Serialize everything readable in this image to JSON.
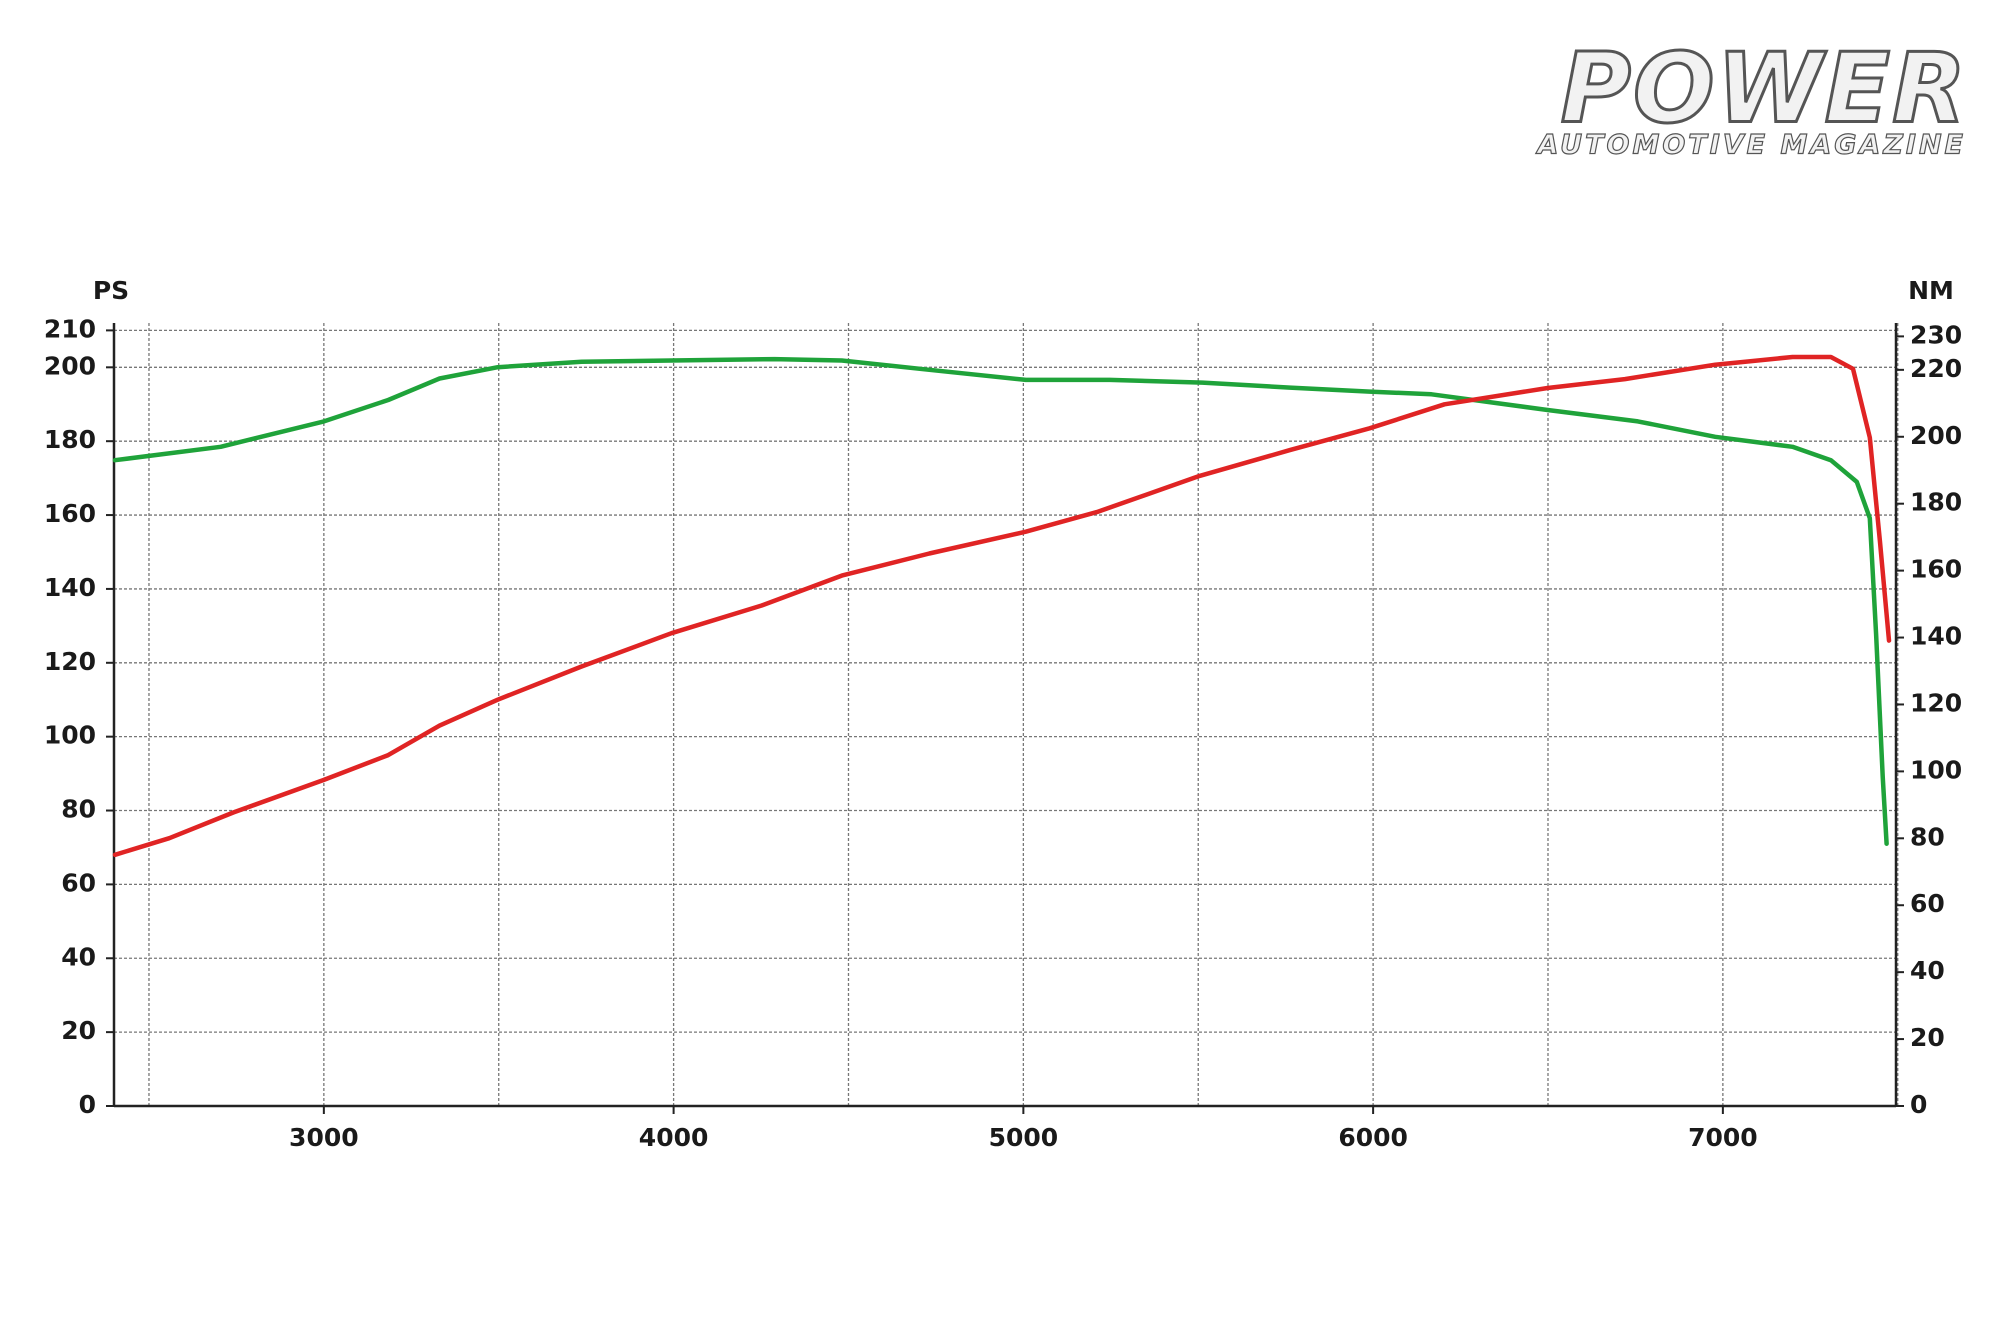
{
  "logo": {
    "title": "POWER",
    "subtitle": "AUTOMOTIVE MAGAZINE"
  },
  "chart_data": {
    "type": "line",
    "ylabel": "PS",
    "y2label": "NM",
    "xlim": [
      2400,
      7495
    ],
    "xticks": [
      3000,
      4000,
      5000,
      6000,
      7000
    ],
    "xgrid": [
      2500,
      3000,
      3500,
      4000,
      4500,
      5000,
      5500,
      6000,
      6500,
      7000,
      7500
    ],
    "ylim": [
      0,
      212
    ],
    "yticks": [
      0,
      20,
      40,
      60,
      80,
      100,
      120,
      140,
      160,
      180,
      200,
      210
    ],
    "y2lim": [
      0,
      234
    ],
    "y2ticks": [
      0,
      20,
      40,
      60,
      80,
      100,
      120,
      140,
      160,
      180,
      200,
      220,
      230
    ],
    "grid": true,
    "series": [
      {
        "color": "#e02424",
        "axis": "y",
        "x": [
          2403,
          2558,
          2742,
          3000,
          3184,
          3331,
          3497,
          3737,
          3994,
          4252,
          4481,
          4731,
          5007,
          5210,
          5504,
          5762,
          5990,
          6204,
          6499,
          6720,
          6978,
          7199,
          7309,
          7372,
          7420,
          7449,
          7475
        ],
        "values": [
          68,
          72.5,
          79.5,
          88.3,
          95,
          103,
          110,
          119,
          128,
          135.5,
          143.6,
          149.6,
          155.5,
          160.8,
          170.6,
          177.6,
          183.5,
          190,
          194.4,
          196.8,
          200.7,
          202.8,
          202.8,
          199.6,
          181,
          153,
          126
        ]
      },
      {
        "color": "#1fa33a",
        "axis": "y2",
        "x": [
          2403,
          2705,
          3000,
          3184,
          3331,
          3497,
          3737,
          3994,
          4289,
          4481,
          4731,
          5007,
          5247,
          5512,
          5762,
          5990,
          6167,
          6499,
          6757,
          6978,
          7199,
          7309,
          7383,
          7420,
          7438,
          7457,
          7468
        ],
        "values": [
          193,
          197,
          204.6,
          211,
          217.4,
          220.8,
          222.4,
          222.8,
          223.2,
          222.8,
          220,
          217,
          217,
          216.2,
          214.7,
          213.5,
          212.7,
          208,
          204.6,
          200,
          197,
          193,
          186.5,
          175.7,
          141,
          98.5,
          78.4
        ]
      }
    ]
  }
}
